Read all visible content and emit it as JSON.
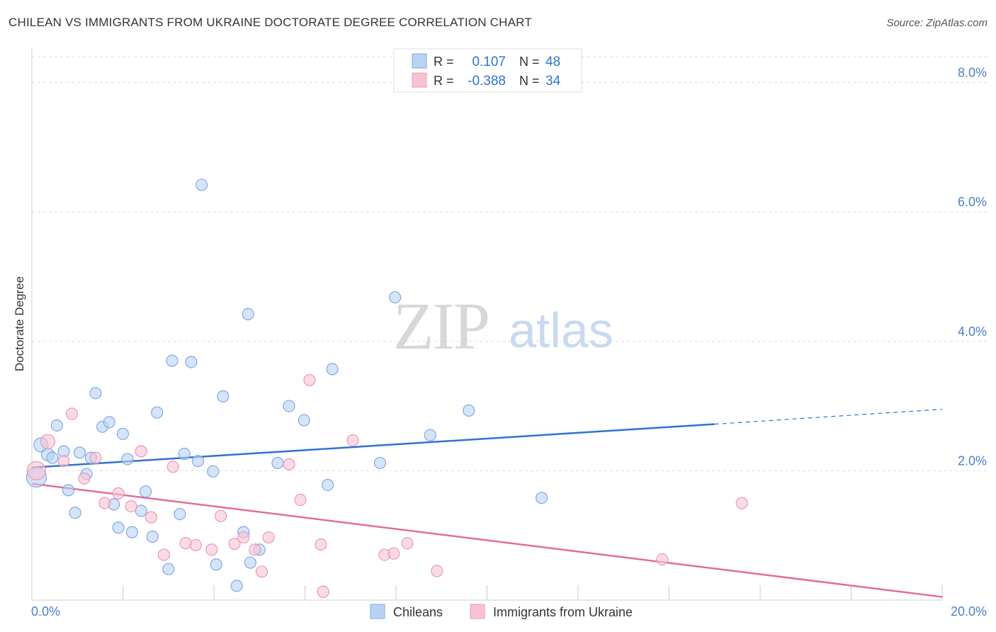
{
  "title": "CHILEAN VS IMMIGRANTS FROM UKRAINE DOCTORATE DEGREE CORRELATION CHART",
  "source": "Source: ZipAtlas.com",
  "colors": {
    "blue_line": "#2f73d0",
    "blue_fill": "#b9d2f3",
    "blue_stroke": "#7eaae6",
    "pink_line": "#e46c96",
    "pink_fill": "#f7c3d3",
    "pink_stroke": "#ee97b4",
    "tick_text": "#4a80cf",
    "grid": "#dddddd"
  },
  "chart_data": {
    "type": "scatter",
    "title": "CHILEAN VS IMMIGRANTS FROM UKRAINE DOCTORATE DEGREE CORRELATION CHART",
    "xlabel": "",
    "ylabel": "Doctorate Degree",
    "xlim": [
      0,
      20
    ],
    "ylim": [
      0,
      8.4
    ],
    "x_tick_labels": [
      "0.0%",
      "20.0%"
    ],
    "y_ticks": [
      2,
      4,
      6,
      8
    ],
    "y_tick_labels": [
      "2.0%",
      "4.0%",
      "6.0%",
      "8.0%"
    ],
    "grid": "horizontal dashed",
    "watermark": {
      "zip": "ZIP",
      "atlas": "atlas"
    },
    "legend_stats": [
      {
        "r_label": "R =",
        "r_value": "0.107",
        "n_label": "N =",
        "n_value": "48"
      },
      {
        "r_label": "R =",
        "r_value": "-0.388",
        "n_label": "N =",
        "n_value": "34"
      }
    ],
    "series": [
      {
        "name": "Chileans",
        "color": "#2f73d0",
        "trend": {
          "x0": 0,
          "y0": 2.05,
          "x1": 15.0,
          "y1": 2.72,
          "dashed_x1": 20.0,
          "dashed_y1": 2.95
        },
        "points": [
          {
            "x": 0.1,
            "y": 1.9,
            "r": 14
          },
          {
            "x": 0.2,
            "y": 2.4,
            "r": 10
          },
          {
            "x": 0.35,
            "y": 2.25,
            "r": 9
          },
          {
            "x": 0.45,
            "y": 2.2
          },
          {
            "x": 0.55,
            "y": 2.7
          },
          {
            "x": 0.7,
            "y": 2.3
          },
          {
            "x": 0.8,
            "y": 1.7
          },
          {
            "x": 0.95,
            "y": 1.35
          },
          {
            "x": 1.05,
            "y": 2.28
          },
          {
            "x": 1.2,
            "y": 1.95
          },
          {
            "x": 1.3,
            "y": 2.2
          },
          {
            "x": 1.4,
            "y": 3.2
          },
          {
            "x": 1.55,
            "y": 2.68
          },
          {
            "x": 1.7,
            "y": 2.75
          },
          {
            "x": 1.8,
            "y": 1.48
          },
          {
            "x": 1.9,
            "y": 1.12
          },
          {
            "x": 2.0,
            "y": 2.57
          },
          {
            "x": 2.1,
            "y": 2.18
          },
          {
            "x": 2.2,
            "y": 1.05
          },
          {
            "x": 2.4,
            "y": 1.38
          },
          {
            "x": 2.5,
            "y": 1.68
          },
          {
            "x": 2.65,
            "y": 0.98
          },
          {
            "x": 2.75,
            "y": 2.9
          },
          {
            "x": 3.0,
            "y": 0.48
          },
          {
            "x": 3.08,
            "y": 3.7
          },
          {
            "x": 3.25,
            "y": 1.33
          },
          {
            "x": 3.35,
            "y": 2.26
          },
          {
            "x": 3.5,
            "y": 3.68
          },
          {
            "x": 3.65,
            "y": 2.15
          },
          {
            "x": 3.73,
            "y": 6.42
          },
          {
            "x": 3.98,
            "y": 1.99
          },
          {
            "x": 4.05,
            "y": 0.55
          },
          {
            "x": 4.2,
            "y": 3.15
          },
          {
            "x": 4.5,
            "y": 0.22
          },
          {
            "x": 4.65,
            "y": 1.05
          },
          {
            "x": 4.75,
            "y": 4.42
          },
          {
            "x": 4.8,
            "y": 0.58
          },
          {
            "x": 5.0,
            "y": 0.78
          },
          {
            "x": 5.4,
            "y": 2.12
          },
          {
            "x": 5.65,
            "y": 3.0
          },
          {
            "x": 5.98,
            "y": 2.78
          },
          {
            "x": 6.5,
            "y": 1.78
          },
          {
            "x": 6.6,
            "y": 3.57
          },
          {
            "x": 7.65,
            "y": 2.12
          },
          {
            "x": 7.98,
            "y": 4.68
          },
          {
            "x": 8.75,
            "y": 2.55
          },
          {
            "x": 9.6,
            "y": 2.93
          },
          {
            "x": 11.2,
            "y": 1.58
          }
        ]
      },
      {
        "name": "Immigrants from Ukraine",
        "color": "#e46c96",
        "trend": {
          "x0": 0,
          "y0": 1.8,
          "x1": 20.0,
          "y1": 0.05
        },
        "points": [
          {
            "x": 0.1,
            "y": 2.0,
            "r": 13
          },
          {
            "x": 0.35,
            "y": 2.45,
            "r": 10
          },
          {
            "x": 0.7,
            "y": 2.15
          },
          {
            "x": 0.88,
            "y": 2.88
          },
          {
            "x": 1.15,
            "y": 1.88
          },
          {
            "x": 1.4,
            "y": 2.2
          },
          {
            "x": 1.6,
            "y": 1.5
          },
          {
            "x": 1.9,
            "y": 1.65
          },
          {
            "x": 2.18,
            "y": 1.45
          },
          {
            "x": 2.4,
            "y": 2.3
          },
          {
            "x": 2.62,
            "y": 1.28
          },
          {
            "x": 2.9,
            "y": 0.7
          },
          {
            "x": 3.1,
            "y": 2.06
          },
          {
            "x": 3.38,
            "y": 0.88
          },
          {
            "x": 3.6,
            "y": 0.85
          },
          {
            "x": 3.95,
            "y": 0.78
          },
          {
            "x": 4.15,
            "y": 1.3
          },
          {
            "x": 4.45,
            "y": 0.87
          },
          {
            "x": 4.65,
            "y": 0.97
          },
          {
            "x": 4.9,
            "y": 0.78
          },
          {
            "x": 5.05,
            "y": 0.44
          },
          {
            "x": 5.2,
            "y": 0.97
          },
          {
            "x": 5.65,
            "y": 2.1
          },
          {
            "x": 5.9,
            "y": 1.55
          },
          {
            "x": 6.1,
            "y": 3.4
          },
          {
            "x": 6.35,
            "y": 0.86
          },
          {
            "x": 6.4,
            "y": 0.13
          },
          {
            "x": 7.05,
            "y": 2.47
          },
          {
            "x": 7.75,
            "y": 0.7
          },
          {
            "x": 7.95,
            "y": 0.72
          },
          {
            "x": 8.25,
            "y": 0.88
          },
          {
            "x": 8.9,
            "y": 0.45
          },
          {
            "x": 13.85,
            "y": 0.63
          },
          {
            "x": 15.6,
            "y": 1.5
          }
        ]
      }
    ]
  }
}
